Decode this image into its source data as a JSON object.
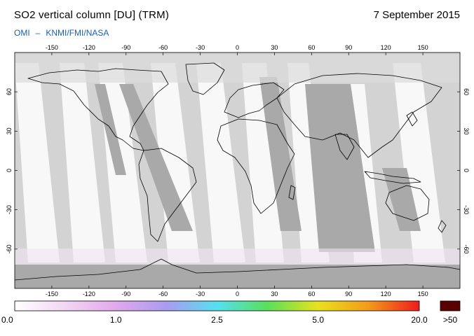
{
  "header": {
    "title": "SO2 vertical column [DU] (TRM)",
    "date": "7 September 2015",
    "credits_left": "OMI",
    "credits_sep": "–",
    "credits_right": "KNMI/FMI/NASA"
  },
  "map": {
    "projection": "equirectangular",
    "lon_range": [
      -180,
      180
    ],
    "lat_range": [
      -90,
      90
    ],
    "lon_ticks": [
      -150,
      -120,
      -90,
      -60,
      -30,
      0,
      30,
      60,
      90,
      120,
      150
    ],
    "lat_ticks": [
      60,
      30,
      0,
      -30,
      -60
    ],
    "background_color": "#d3d3d3",
    "no_data_color": "#a9a9a9",
    "coastline_color": "#000000"
  },
  "colorbar": {
    "stops": [
      "#ffffff",
      "#f3d6f3",
      "#e2a8ec",
      "#a99cf0",
      "#55e0f0",
      "#59e05a",
      "#e8e21c",
      "#f39a1a",
      "#ee1c1c"
    ],
    "tick_labels": [
      "0.0",
      "1.0",
      "2.5",
      "5.0",
      "20.0"
    ],
    "overflow_label": ">50",
    "overflow_color": "#5a0000"
  }
}
